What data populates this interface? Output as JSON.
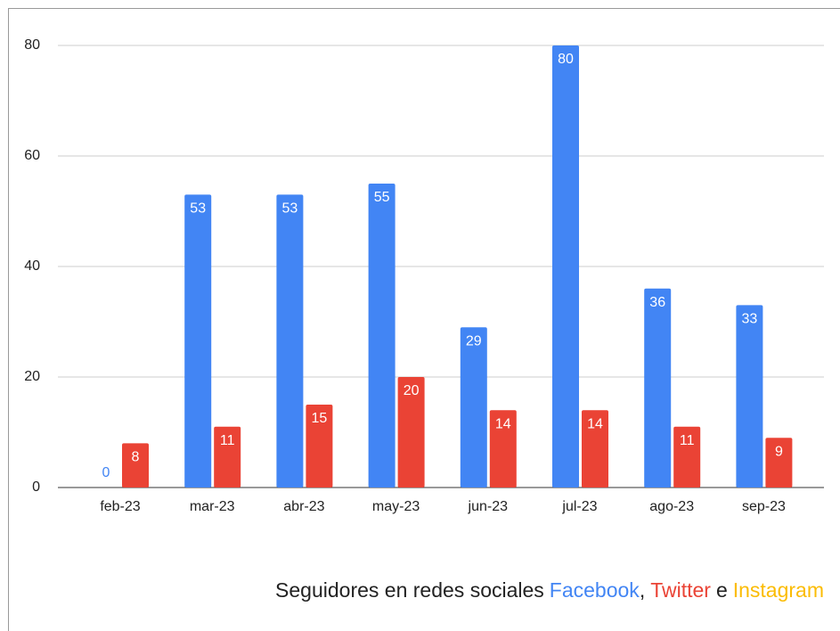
{
  "chart_data": {
    "type": "bar",
    "categories": [
      "feb-23",
      "mar-23",
      "abr-23",
      "may-23",
      "jun-23",
      "jul-23",
      "ago-23",
      "sep-23"
    ],
    "series": [
      {
        "name": "Facebook",
        "color": "#4285f4",
        "values": [
          0,
          53,
          53,
          55,
          29,
          80,
          36,
          33
        ]
      },
      {
        "name": "Twitter",
        "color": "#ea4335",
        "values": [
          8,
          11,
          15,
          20,
          14,
          14,
          11,
          9
        ]
      }
    ],
    "ylim": [
      0,
      80
    ],
    "yticks": [
      0,
      20,
      40,
      60,
      80
    ],
    "grid": true,
    "caption": {
      "text": "Seguidores en redes sociales",
      "joiners": [
        ",",
        "e"
      ]
    },
    "caption_extra": {
      "name": "Instagram",
      "color": "#fbbc04"
    }
  }
}
